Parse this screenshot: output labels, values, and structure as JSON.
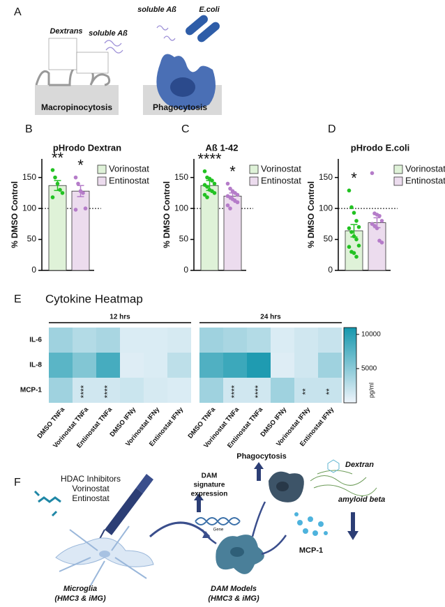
{
  "panel_a": {
    "letter": "A",
    "dextrans": "Dextrans",
    "soluble_left": "soluble Aß",
    "soluble_right": "soluble Aß",
    "ecoli": "E.coli",
    "macro": "Macropinocytosis",
    "phago": "Phagocytosis"
  },
  "chart_data": [
    {
      "type": "bar",
      "letter": "B",
      "title": "pHrodo Dextran",
      "y_label": "% DMSO Control",
      "ylim": [
        0,
        180
      ],
      "yticks": [
        0,
        50,
        100,
        150
      ],
      "refline": 100,
      "series": [
        {
          "name": "Vorinostat",
          "color": "#dff2d8",
          "point_color": "#22c222",
          "values": [
            137
          ],
          "errors": [
            8
          ],
          "points": [
            162,
            150,
            140,
            130,
            125,
            118
          ],
          "significance": "**"
        },
        {
          "name": "Entinostat",
          "color": "#ecdcee",
          "point_color": "#b57cc9",
          "values": [
            128
          ],
          "errors": [
            9
          ],
          "points": [
            150,
            140,
            128,
            125,
            100,
            98
          ],
          "significance": "*"
        }
      ]
    },
    {
      "type": "bar",
      "letter": "C",
      "title": "Aß 1-42",
      "y_label": "% DMSO Control",
      "ylim": [
        0,
        180
      ],
      "yticks": [
        0,
        50,
        100,
        150
      ],
      "refline": 100,
      "series": [
        {
          "name": "Vorinostat",
          "color": "#dff2d8",
          "point_color": "#22c222",
          "values": [
            137
          ],
          "errors": [
            8
          ],
          "points": [
            160,
            150,
            148,
            145,
            140,
            138,
            135,
            130,
            128,
            125,
            122,
            118
          ],
          "significance": "****"
        },
        {
          "name": "Entinostat",
          "color": "#ecdcee",
          "point_color": "#b57cc9",
          "values": [
            120
          ],
          "errors": [
            5
          ],
          "points": [
            140,
            132,
            128,
            125,
            122,
            120,
            118,
            115,
            112,
            110,
            105,
            100
          ],
          "significance": "*"
        }
      ]
    },
    {
      "type": "bar",
      "letter": "D",
      "title": "pHrodo E.coli",
      "y_label": "% DMSO Control",
      "ylim": [
        0,
        180
      ],
      "yticks": [
        0,
        50,
        100,
        150
      ],
      "refline": 100,
      "series": [
        {
          "name": "Vorinostat",
          "color": "#dff2d8",
          "point_color": "#22c222",
          "values": [
            64
          ],
          "errors": [
            10
          ],
          "points": [
            129,
            102,
            93,
            80,
            70,
            68,
            62,
            55,
            50,
            40,
            38,
            30,
            28,
            22
          ],
          "significance": "*"
        },
        {
          "name": "Entinostat",
          "color": "#ecdcee",
          "point_color": "#b57cc9",
          "values": [
            77
          ],
          "errors": [
            8
          ],
          "points": [
            157,
            92,
            90,
            88,
            80,
            75,
            72,
            68,
            48,
            45
          ]
        }
      ]
    },
    {
      "type": "heatmap",
      "letter": "E",
      "title": "Cytokine Heatmap",
      "groups": [
        "12 hrs",
        "24 hrs"
      ],
      "rows": [
        "IL-6",
        "IL-8",
        "MCP-1"
      ],
      "columns": [
        "DMSO TNFa",
        "Vorinostat TNFa",
        "Entinostat TNFa",
        "DMSO IFNy",
        "Vorinostat IFNy",
        "Entinostat IFNy",
        "DMSO TNFa",
        "Vorinostat TNFa",
        "Entinostat TNFa",
        "DMSO IFNy",
        "Vorinostat IFNy",
        "Entinostat IFNy"
      ],
      "values": [
        [
          4000,
          3000,
          3500,
          1000,
          1000,
          1200,
          4000,
          3500,
          3000,
          1000,
          1500,
          2000
        ],
        [
          7500,
          5500,
          8500,
          800,
          1000,
          2500,
          8000,
          9000,
          10500,
          800,
          1500,
          4000
        ],
        [
          4000,
          1500,
          1500,
          1800,
          1200,
          1000,
          4000,
          1500,
          1500,
          4000,
          2000,
          2000
        ]
      ],
      "annotations": [
        [
          null,
          null,
          null,
          null,
          null,
          null,
          null,
          null,
          null,
          null,
          null,
          null
        ],
        [
          null,
          null,
          null,
          null,
          null,
          null,
          null,
          null,
          null,
          null,
          null,
          null
        ],
        [
          null,
          "****",
          "****",
          null,
          null,
          null,
          null,
          "****",
          "****",
          null,
          "**",
          "**"
        ]
      ],
      "colorbar": {
        "label": "pg/ml",
        "lim": [
          0,
          11000
        ],
        "ticks": [
          5000,
          10000
        ]
      },
      "colors": [
        "#eef4fb",
        "#1597ad"
      ]
    }
  ],
  "panel_f": {
    "letter": "F",
    "hdac": "HDAC Inhibitors",
    "vor": "Vorinostat",
    "ent": "Entinostat",
    "microglia": "Microglia",
    "microglia_sub": "(HMC3 & iMG)",
    "dam": "DAM Models",
    "dam_sub": "(HMC3 & iMG)",
    "sig1": "DAM",
    "sig2": "signature",
    "sig3": "expression",
    "gene": "Gene",
    "phago": "Phagocytosis",
    "dextran": "Dextran",
    "amyloid": "amyloid beta",
    "mcp": "MCP-1"
  }
}
